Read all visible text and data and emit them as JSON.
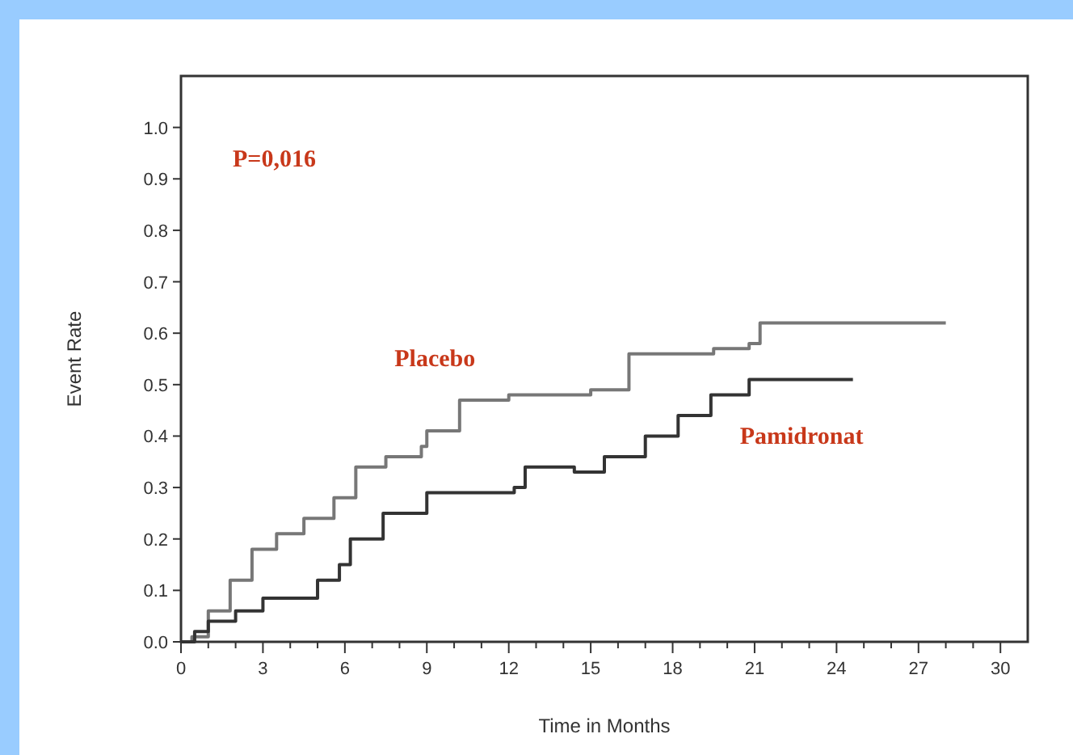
{
  "chart_data": {
    "type": "step",
    "xlabel": "Time in Months",
    "ylabel": "Event Rate",
    "annotations": [
      "P=0,016"
    ],
    "xlim": [
      0,
      31
    ],
    "ylim": [
      0,
      1.1
    ],
    "xticks": [
      0,
      {
        "value": 1,
        "label": null
      },
      {
        "value": 2,
        "label": null
      },
      3,
      {
        "value": 4,
        "label": null
      },
      {
        "value": 5,
        "label": null
      },
      6,
      {
        "value": 7,
        "label": null
      },
      {
        "value": 8,
        "label": null
      },
      9,
      {
        "value": 10,
        "label": null
      },
      {
        "value": 11,
        "label": null
      },
      12,
      {
        "value": 13,
        "label": null
      },
      {
        "value": 14,
        "label": null
      },
      15,
      {
        "value": 16,
        "label": null
      },
      {
        "value": 17,
        "label": null
      },
      18,
      {
        "value": 19,
        "label": null
      },
      {
        "value": 20,
        "label": null
      },
      21,
      {
        "value": 22,
        "label": null
      },
      {
        "value": 23,
        "label": null
      },
      24,
      {
        "value": 25,
        "label": null
      },
      {
        "value": 26,
        "label": null
      },
      27,
      {
        "value": 28,
        "label": null
      },
      {
        "value": 29,
        "label": null
      },
      30
    ],
    "yticks": [
      {
        "value": 0,
        "label": "0.0"
      },
      0.1,
      0.2,
      0.3,
      0.4,
      0.5,
      0.6,
      0.7,
      0.8,
      0.9,
      {
        "value": 1,
        "label": "1.0"
      }
    ],
    "grid": false,
    "series": [
      {
        "name": "Placebo",
        "color": "#777777",
        "x": [
          0,
          0.4,
          1,
          1.8,
          2.6,
          3.5,
          4.5,
          5.6,
          6.4,
          7.5,
          8.8,
          9,
          10.2,
          12,
          15,
          16.4,
          18,
          19.5,
          20.8,
          21.2,
          28
        ],
        "values": [
          0,
          0.01,
          0.06,
          0.12,
          0.18,
          0.21,
          0.24,
          0.28,
          0.34,
          0.36,
          0.38,
          0.41,
          0.47,
          0.48,
          0.49,
          0.56,
          0.56,
          0.57,
          0.58,
          0.62,
          0.62
        ]
      },
      {
        "name": "Pamidronat",
        "color": "#333333",
        "x": [
          0,
          0.5,
          1,
          2,
          3,
          3.8,
          5,
          5.8,
          6.2,
          7.4,
          9,
          10.5,
          12.2,
          12.6,
          14.4,
          15.5,
          17,
          18.2,
          19.4,
          20.8,
          24.6
        ],
        "values": [
          0,
          0.02,
          0.04,
          0.06,
          0.085,
          0.085,
          0.12,
          0.15,
          0.2,
          0.25,
          0.29,
          0.29,
          0.3,
          0.34,
          0.33,
          0.36,
          0.4,
          0.44,
          0.48,
          0.51,
          0.51
        ]
      }
    ]
  }
}
